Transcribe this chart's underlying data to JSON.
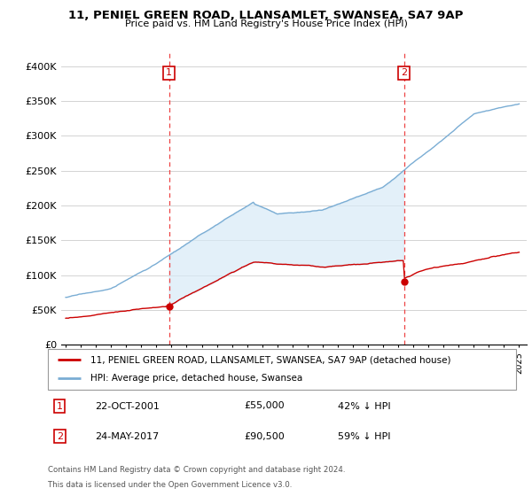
{
  "title": "11, PENIEL GREEN ROAD, LLANSAMLET, SWANSEA, SA7 9AP",
  "subtitle": "Price paid vs. HM Land Registry's House Price Index (HPI)",
  "ylim": [
    0,
    420000
  ],
  "yticks": [
    0,
    50000,
    100000,
    150000,
    200000,
    250000,
    300000,
    350000,
    400000
  ],
  "ytick_labels": [
    "£0",
    "£50K",
    "£100K",
    "£150K",
    "£200K",
    "£250K",
    "£300K",
    "£350K",
    "£400K"
  ],
  "hpi_color": "#7aadd4",
  "hpi_fill_color": "#d8eaf7",
  "price_color": "#cc0000",
  "marker1_date": 2001.83,
  "marker1_price": 55000,
  "marker2_date": 2017.38,
  "marker2_price": 90500,
  "legend_line1": "11, PENIEL GREEN ROAD, LLANSAMLET, SWANSEA, SA7 9AP (detached house)",
  "legend_line2": "HPI: Average price, detached house, Swansea",
  "table_row1": [
    "1",
    "22-OCT-2001",
    "£55,000",
    "42% ↓ HPI"
  ],
  "table_row2": [
    "2",
    "24-MAY-2017",
    "£90,500",
    "59% ↓ HPI"
  ],
  "footnote1": "Contains HM Land Registry data © Crown copyright and database right 2024.",
  "footnote2": "This data is licensed under the Open Government Licence v3.0.",
  "background_color": "#ffffff",
  "grid_color": "#cccccc",
  "xlim_left": 1994.7,
  "xlim_right": 2025.5
}
